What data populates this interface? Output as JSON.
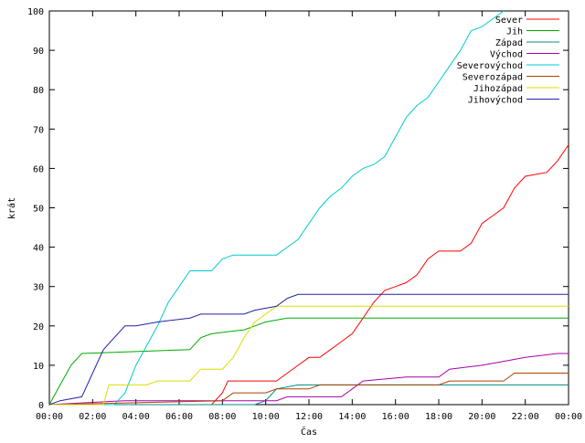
{
  "chart_data": {
    "type": "line",
    "xlabel": "Čas",
    "ylabel": "krát",
    "xlim": [
      "00:00",
      "24:00"
    ],
    "ylim": [
      0,
      100
    ],
    "x_ticks": [
      "00:00",
      "02:00",
      "04:00",
      "06:00",
      "08:00",
      "10:00",
      "12:00",
      "14:00",
      "16:00",
      "18:00",
      "20:00",
      "22:00",
      "00:00"
    ],
    "y_ticks": [
      0,
      10,
      20,
      30,
      40,
      50,
      60,
      70,
      80,
      90,
      100
    ],
    "legend_position": "top-right",
    "grid": false,
    "series": [
      {
        "name": "Sever",
        "color": "#ff0000",
        "points": [
          [
            "00:00",
            0
          ],
          [
            "07:30",
            0
          ],
          [
            "08:00",
            3
          ],
          [
            "08:15",
            6
          ],
          [
            "10:30",
            6
          ],
          [
            "11:00",
            8
          ],
          [
            "11:30",
            10
          ],
          [
            "12:00",
            12
          ],
          [
            "12:30",
            12
          ],
          [
            "13:00",
            14
          ],
          [
            "13:30",
            16
          ],
          [
            "14:00",
            18
          ],
          [
            "14:30",
            22
          ],
          [
            "15:00",
            26
          ],
          [
            "15:30",
            29
          ],
          [
            "16:00",
            30
          ],
          [
            "16:30",
            31
          ],
          [
            "17:00",
            33
          ],
          [
            "17:30",
            37
          ],
          [
            "18:00",
            39
          ],
          [
            "19:00",
            39
          ],
          [
            "19:30",
            41
          ],
          [
            "20:00",
            46
          ],
          [
            "20:30",
            48
          ],
          [
            "21:00",
            50
          ],
          [
            "21:30",
            55
          ],
          [
            "22:00",
            58
          ],
          [
            "23:00",
            59
          ],
          [
            "23:30",
            62
          ],
          [
            "24:00",
            66
          ]
        ]
      },
      {
        "name": "Jih",
        "color": "#00aa00",
        "points": [
          [
            "00:00",
            0
          ],
          [
            "00:30",
            5
          ],
          [
            "01:00",
            10
          ],
          [
            "01:30",
            13
          ],
          [
            "06:30",
            14
          ],
          [
            "07:00",
            17
          ],
          [
            "07:30",
            18
          ],
          [
            "09:00",
            19
          ],
          [
            "09:30",
            20
          ],
          [
            "10:00",
            21
          ],
          [
            "11:00",
            22
          ],
          [
            "24:00",
            22
          ]
        ]
      },
      {
        "name": "Západ",
        "color": "#008b8b",
        "points": [
          [
            "00:00",
            0
          ],
          [
            "09:30",
            0
          ],
          [
            "10:00",
            1
          ],
          [
            "10:30",
            4
          ],
          [
            "11:30",
            5
          ],
          [
            "24:00",
            5
          ]
        ]
      },
      {
        "name": "Východ",
        "color": "#aa00aa",
        "points": [
          [
            "00:00",
            0
          ],
          [
            "03:30",
            1
          ],
          [
            "08:00",
            1
          ],
          [
            "10:30",
            1
          ],
          [
            "11:00",
            2
          ],
          [
            "13:30",
            2
          ],
          [
            "14:00",
            4
          ],
          [
            "14:30",
            6
          ],
          [
            "16:30",
            7
          ],
          [
            "18:00",
            7
          ],
          [
            "18:30",
            9
          ],
          [
            "20:00",
            10
          ],
          [
            "21:00",
            11
          ],
          [
            "22:00",
            12
          ],
          [
            "23:30",
            13
          ],
          [
            "24:00",
            13
          ]
        ]
      },
      {
        "name": "Severovýchod",
        "color": "#00cccc",
        "points": [
          [
            "00:00",
            0
          ],
          [
            "03:00",
            0
          ],
          [
            "03:30",
            3
          ],
          [
            "04:00",
            10
          ],
          [
            "04:30",
            15
          ],
          [
            "05:00",
            20
          ],
          [
            "05:30",
            26
          ],
          [
            "06:00",
            30
          ],
          [
            "06:30",
            34
          ],
          [
            "07:30",
            34
          ],
          [
            "08:00",
            37
          ],
          [
            "08:30",
            38
          ],
          [
            "10:30",
            38
          ],
          [
            "11:00",
            40
          ],
          [
            "11:30",
            42
          ],
          [
            "12:00",
            46
          ],
          [
            "12:30",
            50
          ],
          [
            "13:00",
            53
          ],
          [
            "13:30",
            55
          ],
          [
            "14:00",
            58
          ],
          [
            "14:30",
            60
          ],
          [
            "15:00",
            61
          ],
          [
            "15:30",
            63
          ],
          [
            "16:00",
            68
          ],
          [
            "16:30",
            73
          ],
          [
            "17:00",
            76
          ],
          [
            "17:30",
            78
          ],
          [
            "18:00",
            82
          ],
          [
            "18:30",
            86
          ],
          [
            "19:00",
            90
          ],
          [
            "19:30",
            95
          ],
          [
            "20:00",
            96
          ],
          [
            "20:30",
            98
          ],
          [
            "21:00",
            100
          ]
        ]
      },
      {
        "name": "Severozápad",
        "color": "#aa4400",
        "points": [
          [
            "00:00",
            0
          ],
          [
            "08:00",
            1
          ],
          [
            "08:30",
            3
          ],
          [
            "10:00",
            3
          ],
          [
            "10:30",
            4
          ],
          [
            "12:00",
            4
          ],
          [
            "12:30",
            5
          ],
          [
            "18:00",
            5
          ],
          [
            "18:30",
            6
          ],
          [
            "21:00",
            6
          ],
          [
            "21:30",
            8
          ],
          [
            "24:00",
            8
          ]
        ]
      },
      {
        "name": "Jihozápad",
        "color": "#dddd00",
        "points": [
          [
            "00:00",
            0
          ],
          [
            "02:30",
            0
          ],
          [
            "02:45",
            5
          ],
          [
            "04:30",
            5
          ],
          [
            "05:00",
            6
          ],
          [
            "06:30",
            6
          ],
          [
            "07:00",
            9
          ],
          [
            "08:00",
            9
          ],
          [
            "08:30",
            12
          ],
          [
            "09:00",
            17
          ],
          [
            "09:30",
            21
          ],
          [
            "10:00",
            23
          ],
          [
            "10:30",
            25
          ],
          [
            "24:00",
            25
          ]
        ]
      },
      {
        "name": "Jihovýchod",
        "color": "#2222aa",
        "points": [
          [
            "00:00",
            0
          ],
          [
            "00:30",
            1
          ],
          [
            "01:30",
            2
          ],
          [
            "02:00",
            8
          ],
          [
            "02:30",
            14
          ],
          [
            "03:00",
            17
          ],
          [
            "03:30",
            20
          ],
          [
            "04:00",
            20
          ],
          [
            "05:00",
            21
          ],
          [
            "06:30",
            22
          ],
          [
            "07:00",
            23
          ],
          [
            "09:00",
            23
          ],
          [
            "09:30",
            24
          ],
          [
            "10:30",
            25
          ],
          [
            "11:00",
            27
          ],
          [
            "11:30",
            28
          ],
          [
            "24:00",
            28
          ]
        ]
      }
    ]
  }
}
